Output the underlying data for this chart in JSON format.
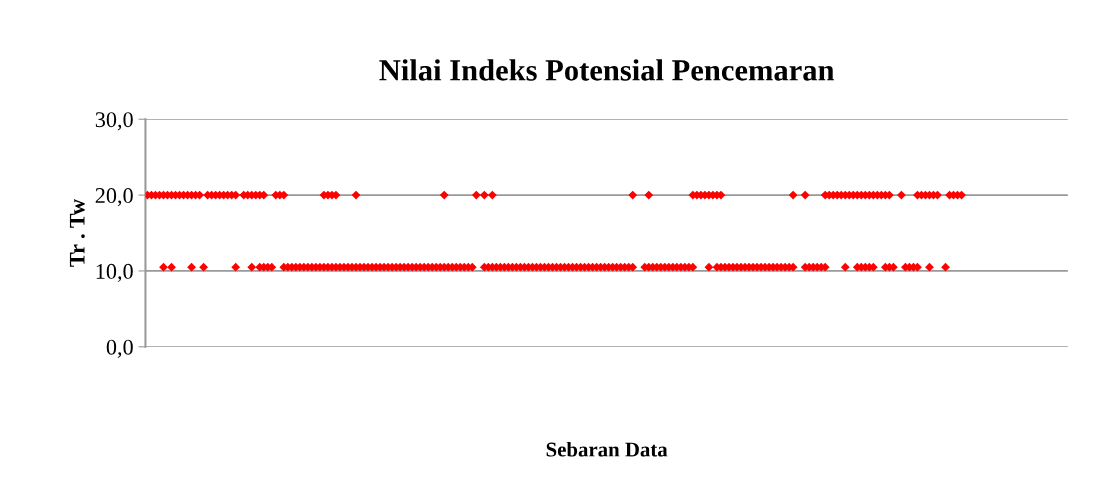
{
  "chart_data": {
    "type": "scatter",
    "title": "Nilai Indeks Potensial Pencemaran",
    "xlabel": "Sebaran Data",
    "ylabel": "Tr . Tw",
    "categories": [
      null,
      null,
      null,
      null,
      null,
      null,
      null,
      null,
      null,
      null,
      null,
      null,
      null,
      null,
      null,
      null,
      null,
      null,
      null,
      null,
      null,
      null,
      null,
      null,
      null,
      null,
      null,
      null,
      null,
      null,
      null,
      null,
      null,
      null,
      null,
      null,
      null,
      null,
      null,
      null,
      null,
      null,
      null,
      null,
      null,
      null,
      null,
      null,
      null,
      null,
      null,
      null,
      null,
      null,
      null,
      null,
      null,
      null,
      null,
      null,
      null,
      null,
      null,
      null,
      null,
      null,
      null,
      null,
      null,
      null,
      null,
      null,
      null,
      null,
      null,
      null,
      null,
      null,
      null,
      null,
      null,
      null,
      null,
      null,
      null,
      null,
      null,
      null,
      null,
      null,
      null,
      null,
      null,
      null,
      null,
      null,
      null,
      null,
      null,
      null,
      null,
      null,
      null,
      null,
      null,
      null,
      null,
      null,
      null,
      null,
      null,
      null,
      null,
      null,
      null,
      null,
      null,
      null,
      null,
      null,
      null,
      null,
      null,
      null,
      null,
      null,
      null,
      null,
      null,
      null,
      null,
      null,
      null,
      null,
      null,
      null,
      null,
      null,
      null,
      null,
      null,
      null,
      null,
      null,
      null,
      null,
      null,
      null,
      null,
      null,
      null,
      null,
      null,
      null,
      null,
      null,
      null,
      null,
      null,
      null,
      null,
      null,
      null,
      null,
      null,
      null,
      null,
      null,
      null,
      null,
      null,
      null,
      null,
      null,
      null,
      null,
      null,
      null,
      null,
      null,
      null,
      null,
      null,
      null,
      null,
      null,
      null,
      null,
      null,
      null,
      null,
      null,
      null,
      null,
      null,
      null,
      null,
      null,
      null,
      null,
      null,
      null,
      null,
      null,
      null,
      null,
      null,
      null,
      null,
      null,
      null,
      null,
      null,
      null,
      null,
      null,
      null,
      null,
      null,
      null,
      null,
      null,
      null,
      null,
      null,
      null,
      null,
      null,
      null,
      null
    ],
    "series": [
      {
        "color": "#ff0000",
        "values": [
          20,
          20,
          20,
          20,
          20,
          20,
          20,
          20,
          20,
          20,
          20,
          20,
          20,
          20,
          null,
          20,
          20,
          20,
          20,
          20,
          20,
          20,
          20,
          null,
          20,
          20,
          20,
          20,
          20,
          20,
          null,
          null,
          20,
          20,
          20,
          null,
          null,
          null,
          null,
          null,
          null,
          null,
          null,
          null,
          20,
          20,
          20,
          20,
          null,
          null,
          null,
          null,
          20,
          null,
          null,
          null,
          null,
          null,
          null,
          null,
          null,
          null,
          null,
          null,
          null,
          null,
          null,
          null,
          null,
          null,
          null,
          null,
          null,
          null,
          20,
          null,
          null,
          null,
          null,
          null,
          null,
          null,
          20,
          null,
          20,
          null,
          20,
          null,
          null,
          null,
          null,
          null,
          null,
          null,
          null,
          null,
          null,
          null,
          null,
          null,
          null,
          null,
          null,
          null,
          null,
          null,
          null,
          null,
          null,
          null,
          null,
          null,
          null,
          null,
          null,
          null,
          null,
          null,
          null,
          null,
          null,
          20,
          null,
          null,
          null,
          20,
          null,
          null,
          null,
          null,
          null,
          null,
          null,
          null,
          null,
          null,
          20,
          20,
          20,
          20,
          20,
          20,
          20,
          20,
          null,
          null,
          null,
          null,
          null,
          null,
          null,
          null,
          null,
          null,
          null,
          null,
          null,
          null,
          null,
          null,
          null,
          20,
          null,
          null,
          20,
          null,
          null,
          null,
          null,
          20,
          20,
          20,
          20,
          20,
          20,
          20,
          20,
          20,
          20,
          20,
          20,
          20,
          20,
          20,
          20,
          20,
          null,
          null,
          20,
          null,
          null,
          null,
          20,
          20,
          20,
          20,
          20,
          20,
          null,
          null,
          20,
          20,
          20,
          20,
          null,
          null,
          null,
          null,
          null,
          null,
          null,
          null,
          null,
          null,
          null,
          null,
          null,
          null,
          null,
          null,
          null,
          null,
          null,
          null,
          null,
          null,
          null,
          null,
          null,
          null
        ]
      },
      {
        "color": "#ff0000",
        "values": [
          null,
          null,
          null,
          null,
          10.5,
          null,
          10.5,
          null,
          null,
          null,
          null,
          10.5,
          null,
          null,
          10.5,
          null,
          null,
          null,
          null,
          null,
          null,
          null,
          10.5,
          null,
          null,
          null,
          10.5,
          null,
          10.5,
          10.5,
          10.5,
          10.5,
          null,
          null,
          10.5,
          10.5,
          10.5,
          10.5,
          10.5,
          10.5,
          10.5,
          10.5,
          10.5,
          10.5,
          10.5,
          10.5,
          10.5,
          10.5,
          10.5,
          10.5,
          10.5,
          10.5,
          10.5,
          10.5,
          10.5,
          10.5,
          10.5,
          10.5,
          10.5,
          10.5,
          10.5,
          10.5,
          10.5,
          10.5,
          10.5,
          10.5,
          10.5,
          10.5,
          10.5,
          10.5,
          10.5,
          10.5,
          10.5,
          10.5,
          10.5,
          10.5,
          10.5,
          10.5,
          10.5,
          10.5,
          10.5,
          10.5,
          null,
          null,
          10.5,
          10.5,
          10.5,
          10.5,
          10.5,
          10.5,
          10.5,
          10.5,
          10.5,
          10.5,
          10.5,
          10.5,
          10.5,
          10.5,
          10.5,
          10.5,
          10.5,
          10.5,
          10.5,
          10.5,
          10.5,
          10.5,
          10.5,
          10.5,
          10.5,
          10.5,
          10.5,
          10.5,
          10.5,
          10.5,
          10.5,
          10.5,
          10.5,
          10.5,
          10.5,
          10.5,
          10.5,
          10.5,
          null,
          null,
          10.5,
          10.5,
          10.5,
          10.5,
          10.5,
          10.5,
          10.5,
          10.5,
          10.5,
          10.5,
          10.5,
          10.5,
          10.5,
          null,
          null,
          null,
          10.5,
          null,
          10.5,
          10.5,
          10.5,
          10.5,
          10.5,
          10.5,
          10.5,
          10.5,
          10.5,
          10.5,
          10.5,
          10.5,
          10.5,
          10.5,
          10.5,
          10.5,
          10.5,
          10.5,
          10.5,
          10.5,
          null,
          null,
          10.5,
          10.5,
          10.5,
          10.5,
          10.5,
          10.5,
          null,
          null,
          null,
          null,
          10.5,
          null,
          null,
          10.5,
          10.5,
          10.5,
          10.5,
          10.5,
          null,
          null,
          10.5,
          10.5,
          10.5,
          null,
          null,
          10.5,
          10.5,
          10.5,
          10.5,
          null,
          null,
          10.5,
          null,
          null,
          null,
          10.5,
          null,
          null,
          null,
          null,
          null,
          null,
          null,
          null,
          null,
          null,
          null,
          null,
          null,
          null,
          null,
          null,
          null,
          null,
          null,
          null,
          null,
          null,
          null,
          null,
          null,
          null,
          null,
          null,
          null,
          null
        ]
      }
    ],
    "ylim": [
      0,
      30
    ],
    "yticks": [
      {
        "value": 0,
        "label": "0,0"
      },
      {
        "value": 10,
        "label": "10,0"
      },
      {
        "value": 20,
        "label": "20,0"
      },
      {
        "value": 30,
        "label": "30,0"
      }
    ],
    "grid": "y",
    "marker": "diamond"
  }
}
